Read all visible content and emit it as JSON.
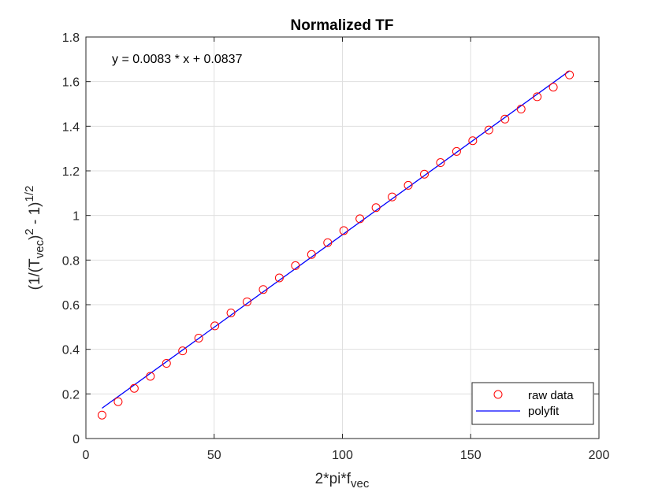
{
  "chart_data": {
    "type": "scatter",
    "title": "Normalized TF",
    "xlabel": {
      "main": "2*pi*f",
      "sub": "vec"
    },
    "ylabel": {
      "p1": "(1/(T",
      "sub": "vec",
      "p2": ")",
      "sup1": "2",
      "p3": " - 1)",
      "sup2": "1/2"
    },
    "xlim": [
      0,
      200
    ],
    "ylim": [
      0,
      1.8
    ],
    "x_ticks": [
      0,
      50,
      100,
      150,
      200
    ],
    "x_tick_labels": [
      "0",
      "50",
      "100",
      "150",
      "200"
    ],
    "y_ticks": [
      0,
      0.2,
      0.4,
      0.6,
      0.8,
      1.0,
      1.2,
      1.4,
      1.6,
      1.8
    ],
    "y_tick_labels": [
      "0",
      "0.2",
      "0.4",
      "0.6",
      "0.8",
      "1",
      "1.2",
      "1.4",
      "1.6",
      "1.8"
    ],
    "grid": true,
    "legend_position": "bottom-right",
    "annotation": "y = 0.0083 * x + 0.0837",
    "series": [
      {
        "name": "raw data",
        "style": "markers",
        "marker": "circle",
        "color": "#ff0000",
        "x": [
          6.28,
          12.57,
          18.85,
          25.13,
          31.42,
          37.7,
          43.98,
          50.27,
          56.55,
          62.83,
          69.12,
          75.4,
          81.68,
          87.96,
          94.25,
          100.53,
          106.81,
          113.1,
          119.38,
          125.66,
          131.95,
          138.23,
          144.51,
          150.8,
          157.08,
          163.36,
          169.65,
          175.93,
          182.21,
          188.5
        ],
        "y": [
          0.105,
          0.165,
          0.225,
          0.279,
          0.337,
          0.393,
          0.45,
          0.505,
          0.563,
          0.613,
          0.668,
          0.72,
          0.775,
          0.825,
          0.878,
          0.932,
          0.985,
          1.035,
          1.083,
          1.135,
          1.185,
          1.237,
          1.287,
          1.335,
          1.383,
          1.432,
          1.477,
          1.532,
          1.575,
          1.63
        ]
      },
      {
        "name": "polyfit",
        "style": "line",
        "color": "#0000ff",
        "x": [
          6.28,
          188.5
        ],
        "y": [
          0.136,
          1.648
        ]
      }
    ]
  }
}
